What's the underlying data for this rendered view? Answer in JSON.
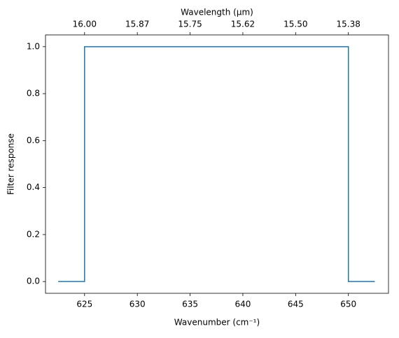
{
  "chart_data": {
    "type": "line",
    "xlabel": "Wavenumber (cm⁻¹)",
    "ylabel": "Filter response",
    "x2label": "Wavelength (μm)",
    "series": [
      {
        "color": "#1f77b4",
        "x": [
          622.5,
          625,
          625,
          650,
          650,
          652.5
        ],
        "values": [
          0,
          0,
          1,
          1,
          0,
          0
        ]
      }
    ],
    "xlim": [
      621.3,
      653.8
    ],
    "ylim": [
      -0.05,
      1.05
    ],
    "xticks": [
      625,
      630,
      635,
      640,
      645,
      650
    ],
    "x2ticks": [
      {
        "value": 625,
        "label": "16.00"
      },
      {
        "value": 630,
        "label": "15.87"
      },
      {
        "value": 635,
        "label": "15.75"
      },
      {
        "value": 640,
        "label": "15.62"
      },
      {
        "value": 645,
        "label": "15.50"
      },
      {
        "value": 650,
        "label": "15.38"
      }
    ],
    "yticks": [
      {
        "value": 0,
        "label": "0.0"
      },
      0.2,
      0.4,
      0.6,
      0.8,
      {
        "value": 1,
        "label": "1.0"
      }
    ]
  }
}
